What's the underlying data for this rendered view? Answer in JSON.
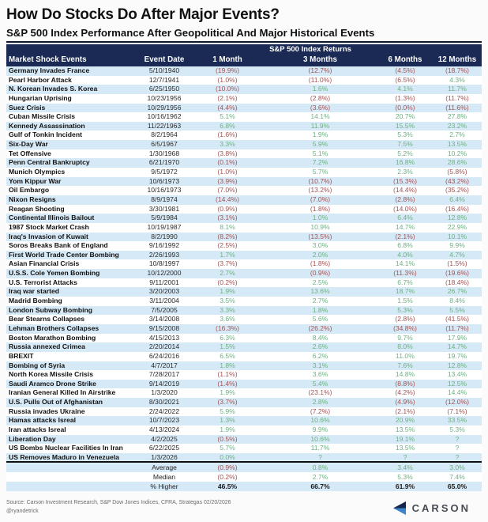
{
  "title": "How Do Stocks Do After Major Events?",
  "subtitle": "S&P 500 Index Performance After Geopolitical And Major Historical Events",
  "footer": {
    "source": "Source: Carson Investment Research, S&P Dow Jones Indices, CFRA, Strategas 02/20/2026",
    "handle": "@ryandetrick",
    "logo_text": "CARSON"
  },
  "colors": {
    "header_bg": "#1b2a55",
    "row_stripe": "#d6e9f7",
    "negative": "#a15454",
    "positive": "#6fb084",
    "logo_navy": "#16254d",
    "logo_blue": "#3d85c8"
  },
  "chart_data": {
    "type": "table",
    "group_header": "S&P 500 Index Returns",
    "columns": [
      "Market Shock Events",
      "Event Date",
      "1 Month",
      "3 Months",
      "6 Months",
      "12 Months"
    ],
    "rows": [
      [
        "Germany Invades France",
        "5/10/1940",
        "(19.9%)",
        "(12.7%)",
        "(4.5%)",
        "(18.7%)"
      ],
      [
        "Pearl Harbor Attack",
        "12/7/1941",
        "(1.0%)",
        "(11.0%)",
        "(6.5%)",
        "4.3%"
      ],
      [
        "N. Korean Invades S. Korea",
        "6/25/1950",
        "(10.0%)",
        "1.6%",
        "4.1%",
        "11.7%"
      ],
      [
        "Hungarian Uprising",
        "10/23/1956",
        "(2.1%)",
        "(2.8%)",
        "(1.3%)",
        "(11.7%)"
      ],
      [
        "Suez Crisis",
        "10/29/1956",
        "(4.4%)",
        "(3.6%)",
        "(0.0%)",
        "(11.6%)"
      ],
      [
        "Cuban Missile Crisis",
        "10/16/1962",
        "5.1%",
        "14.1%",
        "20.7%",
        "27.8%"
      ],
      [
        "Kennedy Assassination",
        "11/22/1963",
        "6.8%",
        "11.9%",
        "15.5%",
        "23.2%"
      ],
      [
        "Gulf of Tonkin Incident",
        "8/2/1964",
        "(1.6%)",
        "1.9%",
        "5.3%",
        "2.7%"
      ],
      [
        "Six-Day War",
        "6/5/1967",
        "3.3%",
        "5.9%",
        "7.5%",
        "13.5%"
      ],
      [
        "Tet Offensive",
        "1/30/1968",
        "(3.8%)",
        "5.1%",
        "5.2%",
        "10.2%"
      ],
      [
        "Penn Central Bankruptcy",
        "6/21/1970",
        "(0.1%)",
        "7.2%",
        "16.8%",
        "28.6%"
      ],
      [
        "Munich Olympics",
        "9/5/1972",
        "(1.0%)",
        "5.7%",
        "2.3%",
        "(5.8%)"
      ],
      [
        "Yom Kippur War",
        "10/6/1973",
        "(3.9%)",
        "(10.7%)",
        "(15.3%)",
        "(43.2%)"
      ],
      [
        "Oil Embargo",
        "10/16/1973",
        "(7.0%)",
        "(13.2%)",
        "(14.4%)",
        "(35.2%)"
      ],
      [
        "Nixon Resigns",
        "8/9/1974",
        "(14.4%)",
        "(7.0%)",
        "(2.8%)",
        "6.4%"
      ],
      [
        "Reagan Shooting",
        "3/30/1981",
        "(0.9%)",
        "(1.8%)",
        "(14.0%)",
        "(16.4%)"
      ],
      [
        "Continental Illinois Bailout",
        "5/9/1984",
        "(3.1%)",
        "1.0%",
        "6.4%",
        "12.8%"
      ],
      [
        "1987 Stock Market Crash",
        "10/19/1987",
        "8.1%",
        "10.9%",
        "14.7%",
        "22.9%"
      ],
      [
        "Iraq's Invasion of Kuwait",
        "8/2/1990",
        "(8.2%)",
        "(13.5%)",
        "(2.1%)",
        "10.1%"
      ],
      [
        "Soros Breaks Bank of England",
        "9/16/1992",
        "(2.5%)",
        "3.0%",
        "6.8%",
        "9.9%"
      ],
      [
        "First World Trade Center Bombing",
        "2/26/1993",
        "1.7%",
        "2.0%",
        "4.0%",
        "4.7%"
      ],
      [
        "Asian Financial Crisis",
        "10/8/1997",
        "(3.7%)",
        "(1.8%)",
        "14.1%",
        "(1.5%)"
      ],
      [
        "U.S.S. Cole Yemen Bombing",
        "10/12/2000",
        "2.7%",
        "(0.9%)",
        "(11.3%)",
        "(19.6%)"
      ],
      [
        "U.S. Terrorist Attacks",
        "9/11/2001",
        "(0.2%)",
        "2.5%",
        "6.7%",
        "(18.4%)"
      ],
      [
        "Iraq war started",
        "3/20/2003",
        "1.9%",
        "13.6%",
        "18.7%",
        "26.7%"
      ],
      [
        "Madrid Bombing",
        "3/11/2004",
        "3.5%",
        "2.7%",
        "1.5%",
        "8.4%"
      ],
      [
        "London Subway Bombing",
        "7/5/2005",
        "3.3%",
        "1.8%",
        "5.3%",
        "5.5%"
      ],
      [
        "Bear Stearns Collapses",
        "3/14/2008",
        "3.6%",
        "5.6%",
        "(2.8%)",
        "(41.5%)"
      ],
      [
        "Lehman Brothers Collapses",
        "9/15/2008",
        "(16.3%)",
        "(26.2%)",
        "(34.8%)",
        "(11.7%)"
      ],
      [
        "Boston Marathon Bombing",
        "4/15/2013",
        "6.3%",
        "8.4%",
        "9.7%",
        "17.9%"
      ],
      [
        "Russia annexed Crimea",
        "2/20/2014",
        "1.5%",
        "2.6%",
        "8.0%",
        "14.7%"
      ],
      [
        "BREXIT",
        "6/24/2016",
        "6.5%",
        "6.2%",
        "11.0%",
        "19.7%"
      ],
      [
        "Bombing of Syria",
        "4/7/2017",
        "1.8%",
        "3.1%",
        "7.6%",
        "12.8%"
      ],
      [
        "North Korea Missile Crisis",
        "7/28/2017",
        "(1.1%)",
        "3.6%",
        "14.8%",
        "13.4%"
      ],
      [
        "Saudi Aramco Drone Strike",
        "9/14/2019",
        "(1.4%)",
        "5.4%",
        "(8.8%)",
        "12.5%"
      ],
      [
        "Iranian General Killed In Airstrike",
        "1/3/2020",
        "1.9%",
        "(23.1%)",
        "(4.2%)",
        "14.4%"
      ],
      [
        "U.S. Pulls Out of Afghanistan",
        "8/30/2021",
        "(3.7%)",
        "2.8%",
        "(4.9%)",
        "(12.0%)"
      ],
      [
        "Russia invades Ukraine",
        "2/24/2022",
        "5.9%",
        "(7.2%)",
        "(2.1%)",
        "(7.1%)"
      ],
      [
        "Hamas attacks Isreal",
        "10/7/2023",
        "1.3%",
        "10.6%",
        "20.9%",
        "33.5%"
      ],
      [
        "Iran attacks Isreal",
        "4/13/2024",
        "1.9%",
        "9.9%",
        "13.5%",
        "5.3%"
      ],
      [
        "Liberation Day",
        "4/2/2025",
        "(0.5%)",
        "10.6%",
        "19.1%",
        "?"
      ],
      [
        "US Bombs Nuclear Facilities In Iran",
        "6/22/2025",
        "5.7%",
        "11.7%",
        "13.5%",
        "?"
      ],
      [
        "US Removes Maduro in Venezuela",
        "1/3/2026",
        "0.0%",
        "?",
        "?",
        "?"
      ]
    ],
    "summary_rows": [
      {
        "label": "Average",
        "values": [
          "(0.9%)",
          "0.8%",
          "3.4%",
          "3.0%"
        ],
        "colored": true,
        "stripe": true
      },
      {
        "label": "Median",
        "values": [
          "(0.2%)",
          "2.7%",
          "5.3%",
          "7.4%"
        ],
        "colored": true,
        "stripe": false
      },
      {
        "label": "% Higher",
        "values": [
          "46.5%",
          "66.7%",
          "61.9%",
          "65.0%"
        ],
        "colored": false,
        "stripe": true
      }
    ]
  }
}
